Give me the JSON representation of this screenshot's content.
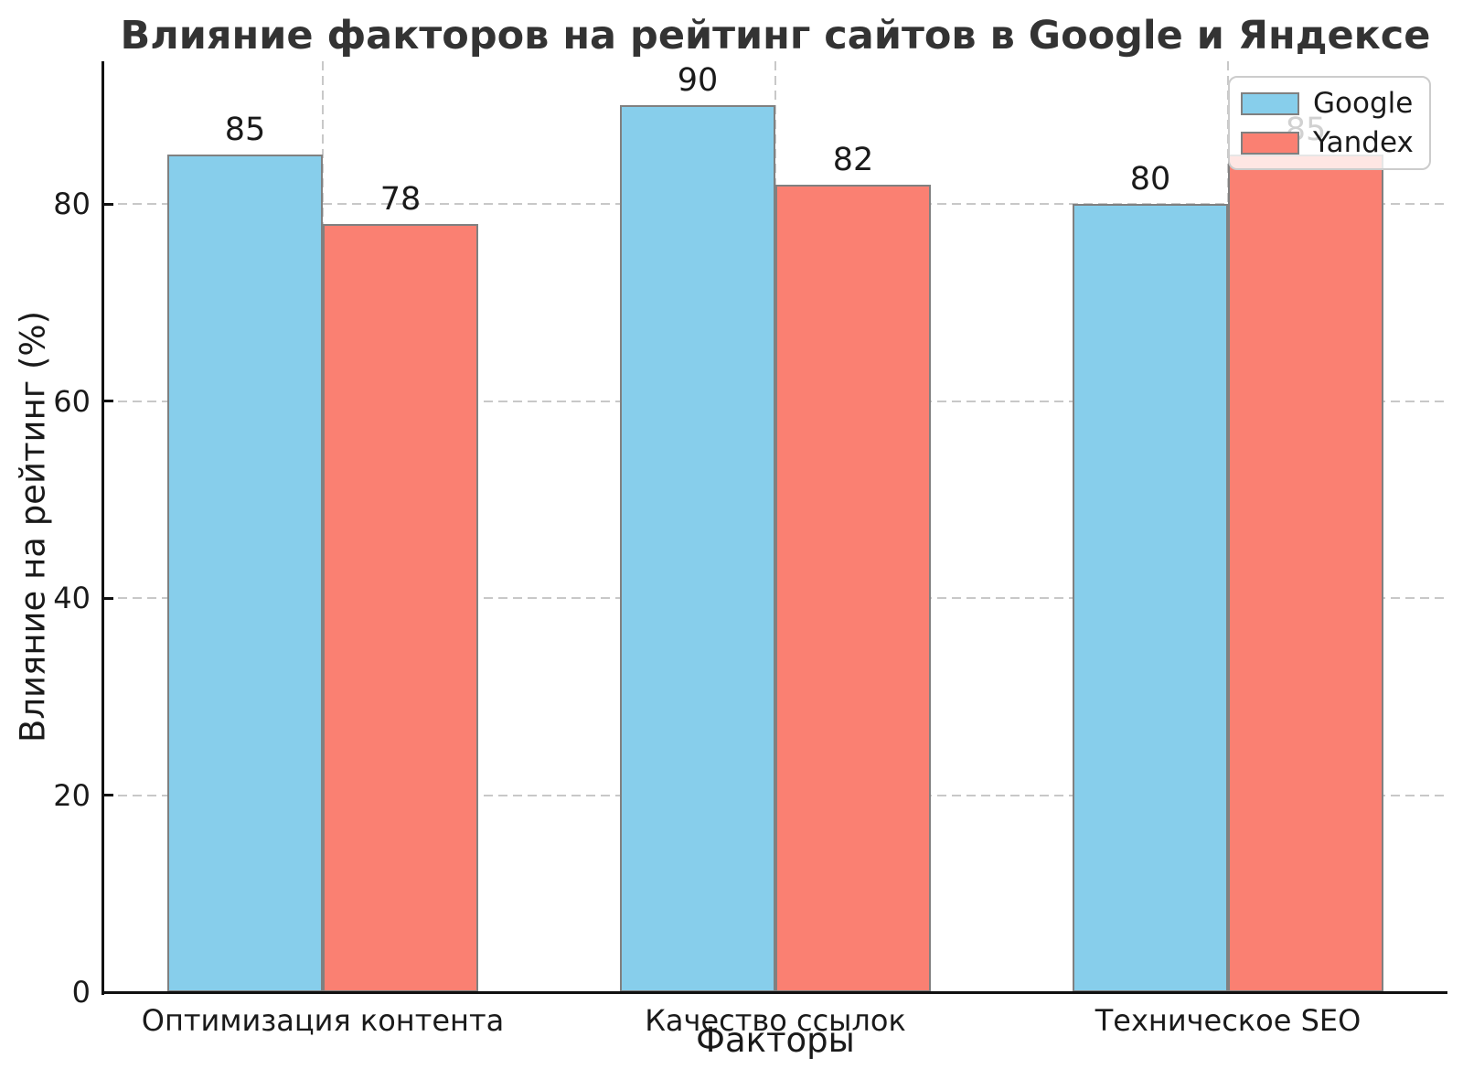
{
  "chart_data": {
    "type": "bar",
    "title": "Влияние факторов на рейтинг сайтов в Google и Яндексе",
    "xlabel": "Факторы",
    "ylabel": "Влияние на рейтинг (%)",
    "categories": [
      "Оптимизация контента",
      "Качество ссылок",
      "Техническое SEO"
    ],
    "series": [
      {
        "name": "Google",
        "color": "#87CEEB",
        "values": [
          85,
          90,
          80
        ]
      },
      {
        "name": "Yandex",
        "color": "#FA8072",
        "values": [
          78,
          82,
          85
        ]
      }
    ],
    "yticks": [
      0,
      20,
      40,
      60,
      80
    ],
    "ylim": [
      0,
      94.5
    ],
    "value_labels_shown": true,
    "grid": true,
    "grid_style": "dashed",
    "legend_position": "upper right",
    "colors": {
      "bar_edge": "#808080",
      "grid": "#c8c8c8",
      "axis": "#111111",
      "text": "#1a1a1a",
      "title": "#333333",
      "legend_border": "#cccccc",
      "legend_bg": "rgba(255,255,255,0.8)"
    }
  }
}
